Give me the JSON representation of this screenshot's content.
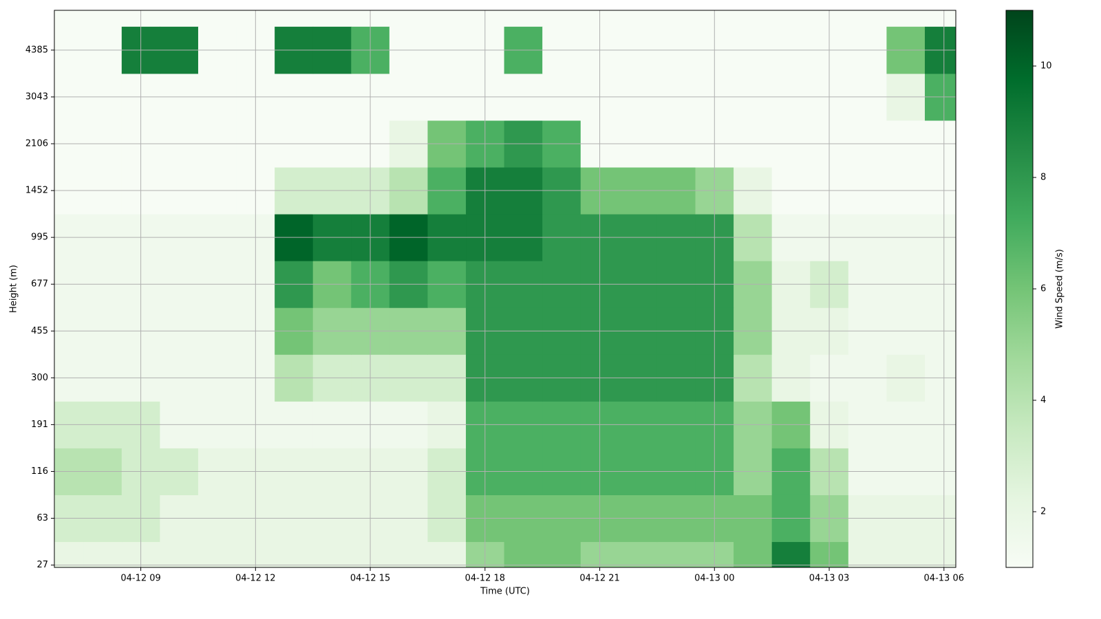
{
  "chart_data": {
    "type": "heatmap",
    "x_label": "Time (UTC)",
    "y_label": "Height (m)",
    "colorbar_label": "Wind Speed (m/s)",
    "x": [
      7,
      8,
      9,
      10,
      11,
      12,
      13,
      14,
      15,
      16,
      17,
      18,
      19,
      20,
      21,
      22,
      23,
      24,
      25,
      26,
      27,
      28,
      29,
      30
    ],
    "xlim": [
      6.74,
      30.31
    ],
    "xticks": [
      {
        "value": 9,
        "label": "04-12 09"
      },
      {
        "value": 12,
        "label": "04-12 12"
      },
      {
        "value": 15,
        "label": "04-12 15"
      },
      {
        "value": 18,
        "label": "04-12 18"
      },
      {
        "value": 21,
        "label": "04-12 21"
      },
      {
        "value": 24,
        "label": "04-13 00"
      },
      {
        "value": 27,
        "label": "04-13 03"
      },
      {
        "value": 30,
        "label": "04-13 06"
      }
    ],
    "ylim": [
      -0.05,
      11.85
    ],
    "yticks": [
      {
        "value": 0,
        "label": "27"
      },
      {
        "value": 1,
        "label": "63"
      },
      {
        "value": 2,
        "label": "116"
      },
      {
        "value": 3,
        "label": "191"
      },
      {
        "value": 4,
        "label": "300"
      },
      {
        "value": 5,
        "label": "455"
      },
      {
        "value": 6,
        "label": "677"
      },
      {
        "value": 7,
        "label": "995"
      },
      {
        "value": 8,
        "label": "1452"
      },
      {
        "value": 9,
        "label": "2106"
      },
      {
        "value": 10,
        "label": "3043"
      },
      {
        "value": 11,
        "label": "4385"
      }
    ],
    "z": [
      [
        2,
        2,
        2,
        2,
        2,
        2,
        2,
        2,
        2,
        2,
        2,
        5,
        6,
        6,
        5,
        5,
        5,
        5,
        6,
        9,
        6,
        2,
        2,
        2
      ],
      [
        3,
        3,
        3,
        2,
        2,
        2,
        2,
        2,
        2,
        2,
        3,
        6,
        6,
        6,
        6,
        6,
        6,
        6,
        6,
        7,
        5,
        2,
        2,
        2
      ],
      [
        4,
        4,
        3,
        3,
        2,
        2,
        2,
        2,
        2,
        2,
        3,
        7,
        7,
        7,
        7,
        7,
        7,
        7,
        5,
        7,
        4,
        1.5,
        1.5,
        1.5
      ],
      [
        3,
        3,
        3,
        1.5,
        1.5,
        1.5,
        1.5,
        1.5,
        1.5,
        1.5,
        2,
        7,
        7,
        7,
        7,
        7,
        7,
        7,
        5,
        6,
        2,
        1.5,
        1.5,
        1.5
      ],
      [
        1.5,
        1.5,
        1.5,
        1.5,
        1.5,
        1.5,
        4,
        3,
        3,
        3,
        3,
        8,
        8,
        8,
        8,
        8,
        8,
        8,
        4,
        2,
        1.5,
        1.5,
        2,
        1.5
      ],
      [
        1.5,
        1.5,
        1.5,
        1.5,
        1.5,
        1.5,
        6,
        5,
        5,
        5,
        5,
        8,
        8,
        8,
        8,
        8,
        8,
        8,
        5,
        2,
        2,
        1.5,
        1.5,
        1.5
      ],
      [
        1.5,
        1.5,
        1.5,
        1.5,
        1.5,
        1.5,
        8,
        6,
        7,
        8,
        7,
        8,
        8,
        8,
        8,
        8,
        8,
        8,
        5,
        2,
        3,
        1.5,
        1.5,
        1.5
      ],
      [
        1.5,
        1.5,
        1.5,
        1.5,
        1.5,
        1.5,
        10,
        9,
        9,
        10,
        9,
        9,
        9,
        8,
        8,
        8,
        8,
        8,
        4,
        1.5,
        1.5,
        1.5,
        1.5,
        1.5
      ],
      [
        1,
        1,
        1,
        1,
        1,
        1,
        3,
        3,
        3,
        4,
        7,
        9,
        9,
        8,
        6,
        6,
        6,
        5,
        2,
        1,
        1,
        1,
        1,
        1
      ],
      [
        1,
        1,
        1,
        1,
        1,
        1,
        1,
        1,
        1,
        2,
        6,
        7,
        8,
        7,
        1,
        1,
        1,
        1,
        1,
        1,
        1,
        1,
        1,
        1
      ],
      [
        1,
        1,
        1,
        1,
        1,
        1,
        1,
        1,
        1,
        1,
        1,
        1,
        1,
        1,
        1,
        1,
        1,
        1,
        1,
        1,
        1,
        1,
        2,
        7
      ],
      [
        1,
        1,
        9,
        9,
        1,
        1,
        9,
        9,
        7,
        1,
        1,
        1,
        7,
        1,
        1,
        1,
        1,
        1,
        1,
        1,
        1,
        1,
        6,
        9
      ]
    ],
    "clim": [
      1,
      11
    ],
    "cticks": [
      2,
      4,
      6,
      8,
      10
    ],
    "colormap": [
      "#f7fcf5",
      "#e5f5e0",
      "#c7e9c0",
      "#a1d99b",
      "#74c476",
      "#41ab5d",
      "#238b45",
      "#006d2c",
      "#00441b"
    ],
    "grid": true
  }
}
